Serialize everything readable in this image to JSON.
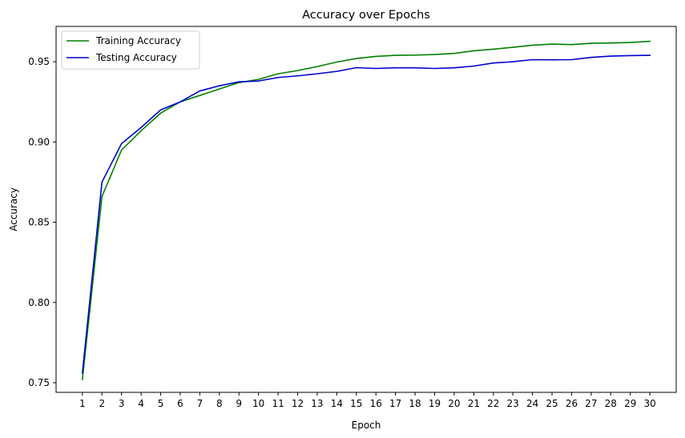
{
  "chart_data": {
    "type": "line",
    "title": "Accuracy over Epochs",
    "xlabel": "Epoch",
    "ylabel": "Accuracy",
    "x": [
      1,
      2,
      3,
      4,
      5,
      6,
      7,
      8,
      9,
      10,
      11,
      12,
      13,
      14,
      15,
      16,
      17,
      18,
      19,
      20,
      21,
      22,
      23,
      24,
      25,
      26,
      27,
      28,
      29,
      30
    ],
    "ylim": [
      0.744,
      0.972
    ],
    "yticks": [
      "0.75",
      "0.80",
      "0.85",
      "0.90",
      "0.95"
    ],
    "grid": false,
    "legend_position": "top-left",
    "series": [
      {
        "name": "Training Accuracy",
        "color": "#008000",
        "values": [
          0.752,
          0.866,
          0.895,
          0.907,
          0.918,
          0.925,
          0.929,
          0.933,
          0.937,
          0.939,
          0.9425,
          0.9445,
          0.947,
          0.9498,
          0.952,
          0.9533,
          0.954,
          0.9541,
          0.9545,
          0.9552,
          0.9568,
          0.9578,
          0.959,
          0.9603,
          0.961,
          0.9607,
          0.9615,
          0.9617,
          0.962,
          0.9627
        ]
      },
      {
        "name": "Testing Accuracy",
        "color": "#0000cd",
        "values": [
          0.756,
          0.875,
          0.899,
          0.909,
          0.92,
          0.925,
          0.9318,
          0.935,
          0.9375,
          0.938,
          0.9402,
          0.9412,
          0.9425,
          0.944,
          0.9463,
          0.9458,
          0.9462,
          0.9462,
          0.9458,
          0.9462,
          0.9473,
          0.9492,
          0.95,
          0.9513,
          0.9512,
          0.9513,
          0.9527,
          0.9535,
          0.9538,
          0.954
        ]
      }
    ]
  }
}
